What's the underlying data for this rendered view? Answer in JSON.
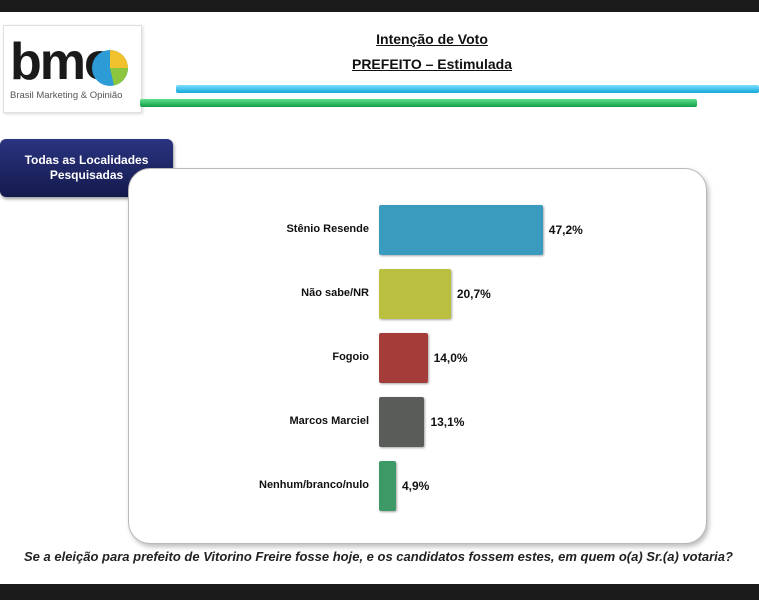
{
  "header": {
    "logo_text": "bmo",
    "logo_subtitle": "Brasil Marketing & Opinião",
    "title": "Intenção de Voto",
    "subtitle": "PREFEITO – Estimulada"
  },
  "location_box": {
    "line1": "Todas as Localidades",
    "line2": "Pesquisadas"
  },
  "chart_data": {
    "type": "bar",
    "orientation": "horizontal",
    "categories": [
      "Stênio Resende",
      "Não sabe/NR",
      "Fogoio",
      "Marcos Marciel",
      "Nenhum/branco/nulo"
    ],
    "values": [
      47.2,
      20.7,
      14.0,
      13.1,
      4.9
    ],
    "value_labels": [
      "47,2%",
      "20,7%",
      "14,0%",
      "13,1%",
      "4,9%"
    ],
    "colors": [
      "#3a9bbf",
      "#bbbf3f",
      "#a43d3a",
      "#5a5c5a",
      "#3d9a66"
    ],
    "xlim": [
      0,
      100
    ],
    "grid": false
  },
  "question": "Se a eleição para prefeito de Vitorino Freire fosse hoje, e os candidatos fossem estes, em quem o(a) Sr.(a) votaria?"
}
